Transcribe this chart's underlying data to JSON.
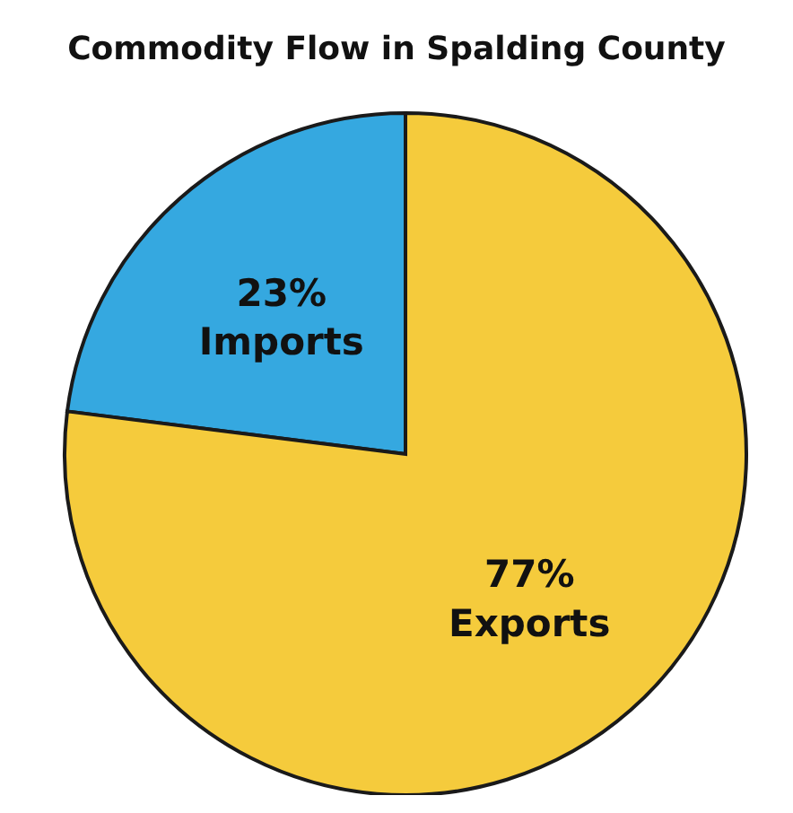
{
  "chart_data": {
    "type": "pie",
    "title": "Commodity Flow in Spalding County",
    "categories": [
      "Imports",
      "Exports"
    ],
    "values": [
      23,
      77
    ],
    "colors": [
      "#35a8e0",
      "#f5cb3c"
    ],
    "value_labels": [
      "23%",
      "77%"
    ]
  }
}
